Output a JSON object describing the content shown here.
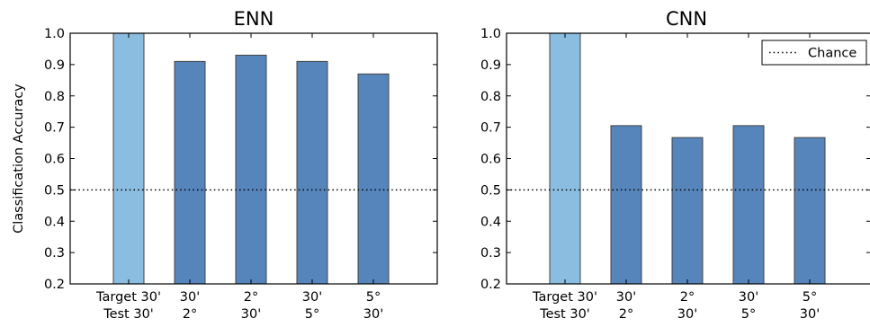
{
  "chart_data": [
    {
      "type": "bar",
      "title": "ENN",
      "ylabel": "Classification Accuracy",
      "ylim": [
        0.2,
        1.0
      ],
      "yticks": [
        "0.2",
        "0.3",
        "0.4",
        "0.5",
        "0.6",
        "0.7",
        "0.8",
        "0.9",
        "1.0"
      ],
      "categories": [
        {
          "line1": "Target 30'",
          "line2": "Test 30'"
        },
        {
          "line1": "30'",
          "line2": "2°"
        },
        {
          "line1": "2°",
          "line2": "30'"
        },
        {
          "line1": "30'",
          "line2": "5°"
        },
        {
          "line1": "5°",
          "line2": "30'"
        }
      ],
      "values": [
        1.0,
        0.91,
        0.93,
        0.91,
        0.87
      ],
      "colors": [
        "#8bbde0",
        "#5585bb",
        "#5585bb",
        "#5585bb",
        "#5585bb"
      ],
      "chance": 0.5,
      "legend": null
    },
    {
      "type": "bar",
      "title": "CNN",
      "ylabel": "",
      "ylim": [
        0.2,
        1.0
      ],
      "yticks": [
        "0.2",
        "0.3",
        "0.4",
        "0.5",
        "0.6",
        "0.7",
        "0.8",
        "0.9",
        "1.0"
      ],
      "categories": [
        {
          "line1": "Target 30'",
          "line2": "Test 30'"
        },
        {
          "line1": "30'",
          "line2": "2°"
        },
        {
          "line1": "2°",
          "line2": "30'"
        },
        {
          "line1": "30'",
          "line2": "5°"
        },
        {
          "line1": "5°",
          "line2": "30'"
        }
      ],
      "values": [
        1.0,
        0.705,
        0.667,
        0.705,
        0.667
      ],
      "colors": [
        "#8bbde0",
        "#5585bb",
        "#5585bb",
        "#5585bb",
        "#5585bb"
      ],
      "chance": 0.5,
      "legend": {
        "label": "Chance",
        "position": "top-right"
      }
    }
  ]
}
